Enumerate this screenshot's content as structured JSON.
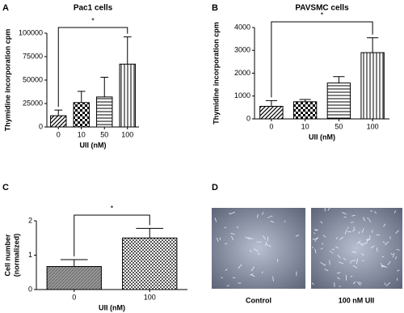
{
  "chart_data": [
    {
      "type": "bar",
      "panel_label": "A",
      "title": "Pac1 cells",
      "ylabel": [
        "Thymidine incorporation cpm"
      ],
      "xlabel": "UII (nM)",
      "categories": [
        "0",
        "10",
        "50",
        "100"
      ],
      "values": [
        12000,
        26000,
        32000,
        67000
      ],
      "errors": [
        6000,
        12000,
        21000,
        29000
      ],
      "patterns": [
        "diagonal",
        "checker",
        "horizontal",
        "vertical"
      ],
      "annotation": "*",
      "ylim": [
        0,
        100000
      ],
      "yticks": [
        0,
        25000,
        50000,
        75000,
        100000
      ]
    },
    {
      "type": "bar",
      "panel_label": "B",
      "title": "PAVSMC cells",
      "ylabel": [
        "Thymidine incorporation cpm"
      ],
      "xlabel": "UII (nM)",
      "categories": [
        "0",
        "10",
        "50",
        "100"
      ],
      "values": [
        550,
        750,
        1570,
        2900
      ],
      "errors": [
        250,
        100,
        280,
        650
      ],
      "patterns": [
        "diagonal",
        "checker",
        "horizontal",
        "vertical"
      ],
      "annotation": "*",
      "ylim": [
        0,
        4000
      ],
      "yticks": [
        0,
        1000,
        2000,
        3000,
        4000
      ]
    },
    {
      "type": "bar",
      "panel_label": "C",
      "ylabel": [
        "Cell number",
        "(normalized)"
      ],
      "xlabel": "UII (nM)",
      "categories": [
        "0",
        "100"
      ],
      "values": [
        0.67,
        1.5
      ],
      "errors": [
        0.2,
        0.28
      ],
      "patterns": [
        "diagonal-grey",
        "checker-dense"
      ],
      "annotation": "*",
      "ylim": [
        0,
        2
      ],
      "yticks": [
        0,
        1,
        2
      ]
    }
  ],
  "images": {
    "panel_label": "D",
    "captions": [
      "Control",
      "100 nM UII"
    ]
  }
}
